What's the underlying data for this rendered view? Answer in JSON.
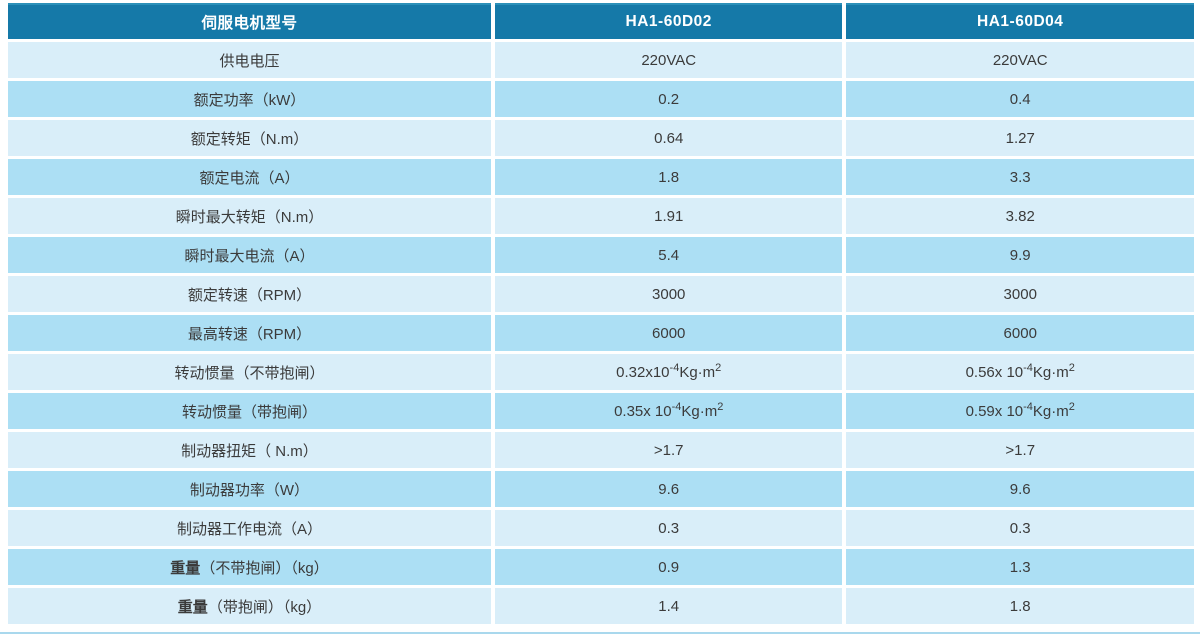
{
  "colors": {
    "header_bg": "#1579A8",
    "row_light": "#D9EEF9",
    "row_dark": "#ACDFF4",
    "header_text": "#FFFFFF",
    "body_text": "#3B3B3B",
    "top_line": "#2B90B9",
    "bottom_line": "#A9D8ED",
    "page_bg": "#FFFFFF"
  },
  "table": {
    "columns": [
      {
        "label": "伺服电机型号"
      },
      {
        "label": "HA1-60D02"
      },
      {
        "label": "HA1-60D04"
      }
    ],
    "rows": [
      {
        "label": "供电电压",
        "values": [
          "220VAC",
          "220VAC"
        ]
      },
      {
        "label": "额定功率（kW）",
        "values": [
          "0.2",
          "0.4"
        ]
      },
      {
        "label": "额定转矩（N.m）",
        "values": [
          "0.64",
          "1.27"
        ]
      },
      {
        "label": "额定电流（A）",
        "values": [
          "1.8",
          "3.3"
        ]
      },
      {
        "label": "瞬时最大转矩（N.m）",
        "values": [
          "1.91",
          "3.82"
        ]
      },
      {
        "label": "瞬时最大电流（A）",
        "values": [
          "5.4",
          "9.9"
        ]
      },
      {
        "label": "额定转速（RPM）",
        "values": [
          "3000",
          "3000"
        ]
      },
      {
        "label": "最高转速（RPM）",
        "values": [
          "6000",
          "6000"
        ]
      },
      {
        "label": "转动惯量（不带抱闸）",
        "values": [
          [
            {
              "t": "0.32x10"
            },
            {
              "t": "-4",
              "sup": true
            },
            {
              "t": "Kg·m"
            },
            {
              "t": "2",
              "sup": true
            }
          ],
          [
            {
              "t": "0.56x 10"
            },
            {
              "t": "-4",
              "sup": true
            },
            {
              "t": "Kg·m"
            },
            {
              "t": "2",
              "sup": true
            }
          ]
        ]
      },
      {
        "label": "转动惯量（带抱闸）",
        "values": [
          [
            {
              "t": "0.35x 10"
            },
            {
              "t": "-4",
              "sup": true
            },
            {
              "t": "Kg·m"
            },
            {
              "t": "2",
              "sup": true
            }
          ],
          [
            {
              "t": "0.59x 10"
            },
            {
              "t": "-4",
              "sup": true
            },
            {
              "t": "Kg·m"
            },
            {
              "t": "2",
              "sup": true
            }
          ]
        ]
      },
      {
        "label": "制动器扭矩（ N.m）",
        "values": [
          ">1.7",
          ">1.7"
        ]
      },
      {
        "label": "制动器功率（W）",
        "values": [
          "9.6",
          "9.6"
        ]
      },
      {
        "label": "制动器工作电流（A）",
        "values": [
          "0.3",
          "0.3"
        ]
      },
      {
        "bold_prefix": "重量",
        "label": "（不带抱闸）（kg）",
        "values": [
          "0.9",
          "1.3"
        ]
      },
      {
        "bold_prefix": "重量",
        "label": "（带抱闸）（kg）",
        "values": [
          "1.4",
          "1.8"
        ]
      }
    ]
  }
}
